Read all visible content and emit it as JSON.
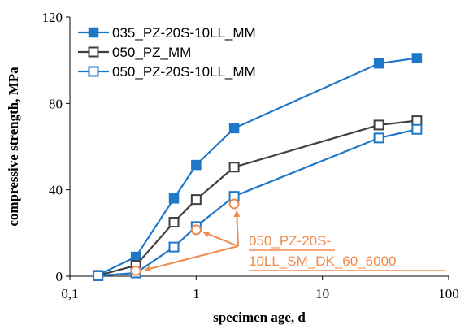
{
  "chart_data": {
    "type": "scatter",
    "xlabel": "specimen age, d",
    "ylabel": "compressive strength, MPa",
    "x_scale": "log",
    "xlim": [
      0.1,
      100
    ],
    "ylim": [
      0,
      120
    ],
    "x_ticks": [
      0.1,
      1,
      10,
      100
    ],
    "x_tick_labels": [
      "0,1",
      "1",
      "10",
      "100"
    ],
    "y_ticks": [
      0,
      40,
      80,
      120
    ],
    "y_tick_labels": [
      "0",
      "40",
      "80",
      "120"
    ],
    "grid": false,
    "legend_position": "top-left",
    "series": [
      {
        "name": "035_PZ-20S-10LL_MM",
        "color": "#1f77c8",
        "marker": "filled-square",
        "x": [
          0.167,
          0.333,
          0.667,
          1,
          2,
          28,
          56
        ],
        "y": [
          0.5,
          9,
          36,
          51.5,
          68.5,
          98.5,
          101
        ]
      },
      {
        "name": "050_PZ_MM",
        "color": "#404040",
        "marker": "open-square",
        "x": [
          0.167,
          0.333,
          0.667,
          1,
          2,
          28,
          56
        ],
        "y": [
          0.3,
          5,
          25,
          35.5,
          50.5,
          70,
          72
        ]
      },
      {
        "name": "050_PZ-20S-10LL_MM",
        "color": "#1f77c8",
        "marker": "open-square",
        "x": [
          0.167,
          0.333,
          0.667,
          1,
          2,
          28,
          56
        ],
        "y": [
          0.2,
          1.5,
          13.5,
          23,
          37,
          64,
          68
        ]
      },
      {
        "name": "050_PZ-20S-10LL_SM_DK_60_6000",
        "color": "#f08a4b",
        "marker": "open-circle",
        "x": [
          0.333,
          1,
          2
        ],
        "y": [
          2.5,
          21.5,
          33.5
        ]
      }
    ],
    "annotation": {
      "line1": "050_PZ-20S-",
      "line2": "10LL_SM_DK_60_6000",
      "color": "#f08a4b"
    }
  }
}
